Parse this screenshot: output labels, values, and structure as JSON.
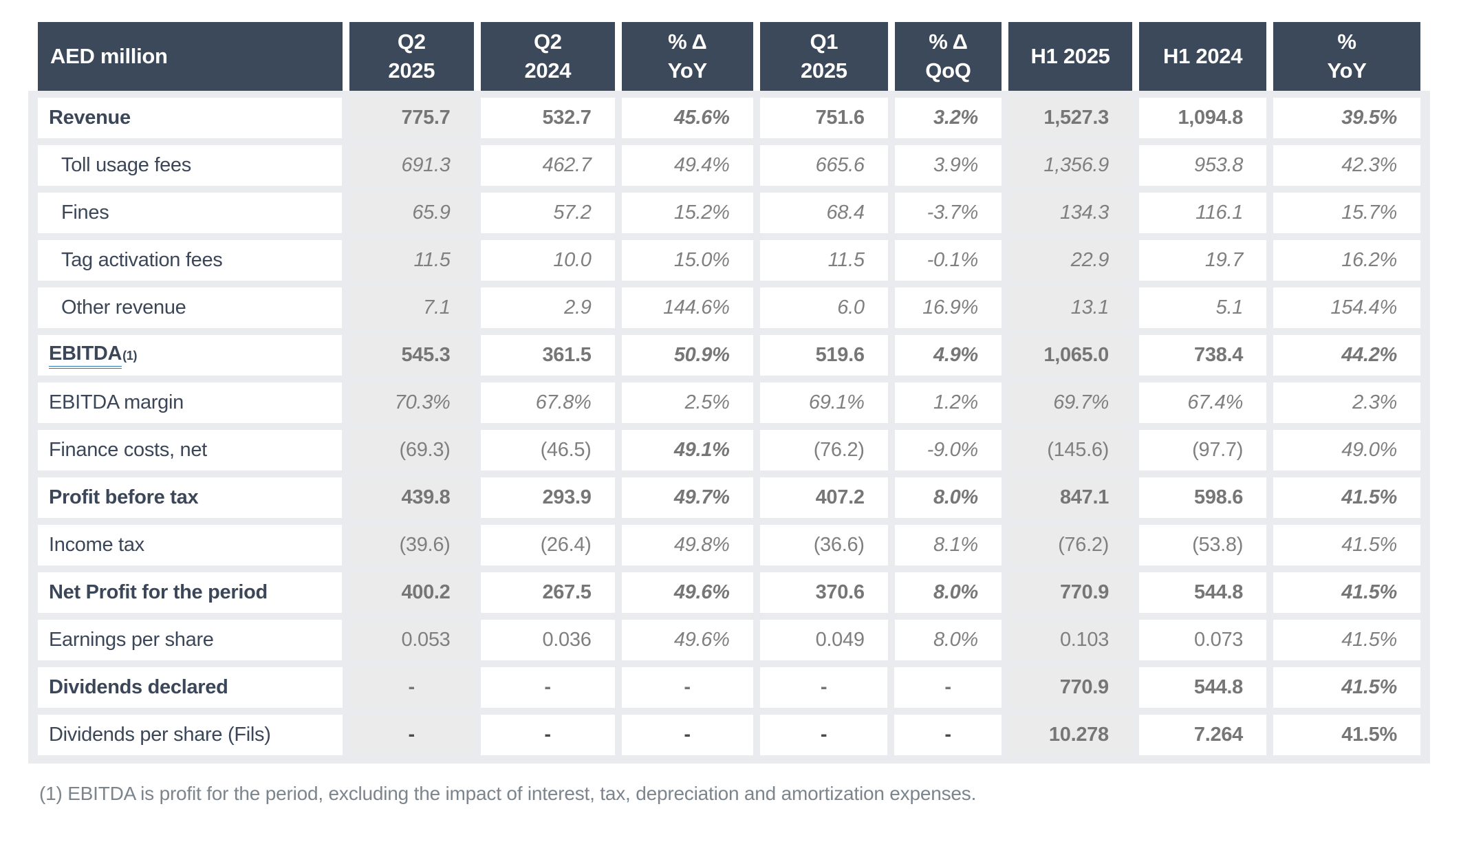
{
  "colors": {
    "header_bg": "#3c495b",
    "body_backdrop": "#e9ebee",
    "shaded_column": "#ebebeb",
    "value_text": "#7f7f7f",
    "label_text": "#3b4759",
    "footnote_link_underline": "#2e75b6"
  },
  "table": {
    "unit_label": "AED million",
    "columns": [
      {
        "id": "q2-2025",
        "lines": [
          "Q2",
          "2025"
        ],
        "shaded": true
      },
      {
        "id": "q2-2024",
        "lines": [
          "Q2",
          "2024"
        ],
        "shaded": false
      },
      {
        "id": "pct-delta-yoy",
        "lines": [
          "% Δ",
          "YoY"
        ],
        "shaded": false
      },
      {
        "id": "q1-2025",
        "lines": [
          "Q1",
          "2025"
        ],
        "shaded": false
      },
      {
        "id": "pct-delta-qoq",
        "lines": [
          "% Δ",
          "QoQ"
        ],
        "shaded": false
      },
      {
        "id": "h1-2025",
        "lines": [
          "H1 2025"
        ],
        "shaded": true
      },
      {
        "id": "h1-2024",
        "lines": [
          "H1 2024"
        ],
        "shaded": false
      },
      {
        "id": "pct-yoy",
        "lines": [
          "%",
          "YoY"
        ],
        "shaded": false
      }
    ],
    "rows": [
      {
        "label": "Revenue",
        "bold": true,
        "indent": false,
        "values": [
          "775.7",
          "532.7",
          "45.6%",
          "751.6",
          "3.2%",
          "1,527.3",
          "1,094.8",
          "39.5%"
        ],
        "styles": [
          "b",
          "b",
          "bi",
          "b",
          "bi",
          "b",
          "b",
          "bi"
        ]
      },
      {
        "label": "Toll usage fees",
        "bold": false,
        "indent": true,
        "values": [
          "691.3",
          "462.7",
          "49.4%",
          "665.6",
          "3.9%",
          "1,356.9",
          "953.8",
          "42.3%"
        ],
        "styles": [
          "i",
          "i",
          "i",
          "i",
          "i",
          "i",
          "i",
          "i"
        ]
      },
      {
        "label": "Fines",
        "bold": false,
        "indent": true,
        "values": [
          "65.9",
          "57.2",
          "15.2%",
          "68.4",
          "-3.7%",
          "134.3",
          "116.1",
          "15.7%"
        ],
        "styles": [
          "i",
          "i",
          "i",
          "i",
          "i",
          "i",
          "i",
          "i"
        ]
      },
      {
        "label": "Tag activation fees",
        "bold": false,
        "indent": true,
        "values": [
          "11.5",
          "10.0",
          "15.0%",
          "11.5",
          "-0.1%",
          "22.9",
          "19.7",
          "16.2%"
        ],
        "styles": [
          "i",
          "i",
          "i",
          "i",
          "i",
          "i",
          "i",
          "i"
        ]
      },
      {
        "label": "Other revenue",
        "bold": false,
        "indent": true,
        "values": [
          "7.1",
          "2.9",
          "144.6%",
          "6.0",
          "16.9%",
          "13.1",
          "5.1",
          "154.4%"
        ],
        "styles": [
          "i",
          "i",
          "i",
          "i",
          "i",
          "i",
          "i",
          "i"
        ]
      },
      {
        "label": "EBITDA",
        "sup": "(1)",
        "underline": true,
        "bold": true,
        "indent": false,
        "values": [
          "545.3",
          "361.5",
          "50.9%",
          "519.6",
          "4.9%",
          "1,065.0",
          "738.4",
          "44.2%"
        ],
        "styles": [
          "b",
          "b",
          "bi",
          "b",
          "bi",
          "b",
          "b",
          "bi"
        ]
      },
      {
        "label": "EBITDA margin",
        "bold": false,
        "indent": false,
        "values": [
          "70.3%",
          "67.8%",
          "2.5%",
          "69.1%",
          "1.2%",
          "69.7%",
          "67.4%",
          "2.3%"
        ],
        "styles": [
          "i",
          "i",
          "i",
          "i",
          "i",
          "i",
          "i",
          "i"
        ]
      },
      {
        "label": "Finance costs, net",
        "bold": false,
        "indent": false,
        "values": [
          "(69.3)",
          "(46.5)",
          "49.1%",
          "(76.2)",
          "-9.0%",
          "(145.6)",
          "(97.7)",
          "49.0%"
        ],
        "styles": [
          "",
          "",
          "bi",
          "",
          "i",
          "",
          "",
          "i"
        ]
      },
      {
        "label": "Profit before tax",
        "bold": true,
        "indent": false,
        "values": [
          "439.8",
          "293.9",
          "49.7%",
          "407.2",
          "8.0%",
          "847.1",
          "598.6",
          "41.5%"
        ],
        "styles": [
          "b",
          "b",
          "bi",
          "b",
          "bi",
          "b",
          "b",
          "bi"
        ]
      },
      {
        "label": "Income tax",
        "bold": false,
        "indent": false,
        "values": [
          "(39.6)",
          "(26.4)",
          "49.8%",
          "(36.6)",
          "8.1%",
          "(76.2)",
          "(53.8)",
          "41.5%"
        ],
        "styles": [
          "",
          "",
          "i",
          "",
          "i",
          "",
          "",
          "i"
        ]
      },
      {
        "label": "Net Profit for the period",
        "bold": true,
        "indent": false,
        "values": [
          "400.2",
          "267.5",
          "49.6%",
          "370.6",
          "8.0%",
          "770.9",
          "544.8",
          "41.5%"
        ],
        "styles": [
          "b",
          "b",
          "bi",
          "b",
          "bi",
          "b",
          "b",
          "bi"
        ]
      },
      {
        "label": "Earnings per share",
        "bold": false,
        "indent": false,
        "values": [
          "0.053",
          "0.036",
          "49.6%",
          "0.049",
          "8.0%",
          "0.103",
          "0.073",
          "41.5%"
        ],
        "styles": [
          "",
          "",
          "i",
          "",
          "i",
          "",
          "",
          "i"
        ]
      },
      {
        "label": "Dividends declared",
        "bold": true,
        "indent": false,
        "values": [
          "-",
          "-",
          "-",
          "-",
          "-",
          "770.9",
          "544.8",
          "41.5%"
        ],
        "styles": [
          "b",
          "b",
          "b",
          "b",
          "b",
          "b",
          "b",
          "bi"
        ]
      },
      {
        "label": "Dividends per share (Fils)",
        "bold": false,
        "indent": false,
        "values": [
          "-",
          "-",
          "-",
          "-",
          "-",
          "10.278",
          "7.264",
          "41.5%"
        ],
        "styles": [
          "bd",
          "bd",
          "bd",
          "bd",
          "bd",
          "b",
          "b",
          "b"
        ]
      }
    ]
  },
  "footnote": "(1) EBITDA is profit for the period, excluding the impact of interest, tax, depreciation and amortization expenses."
}
